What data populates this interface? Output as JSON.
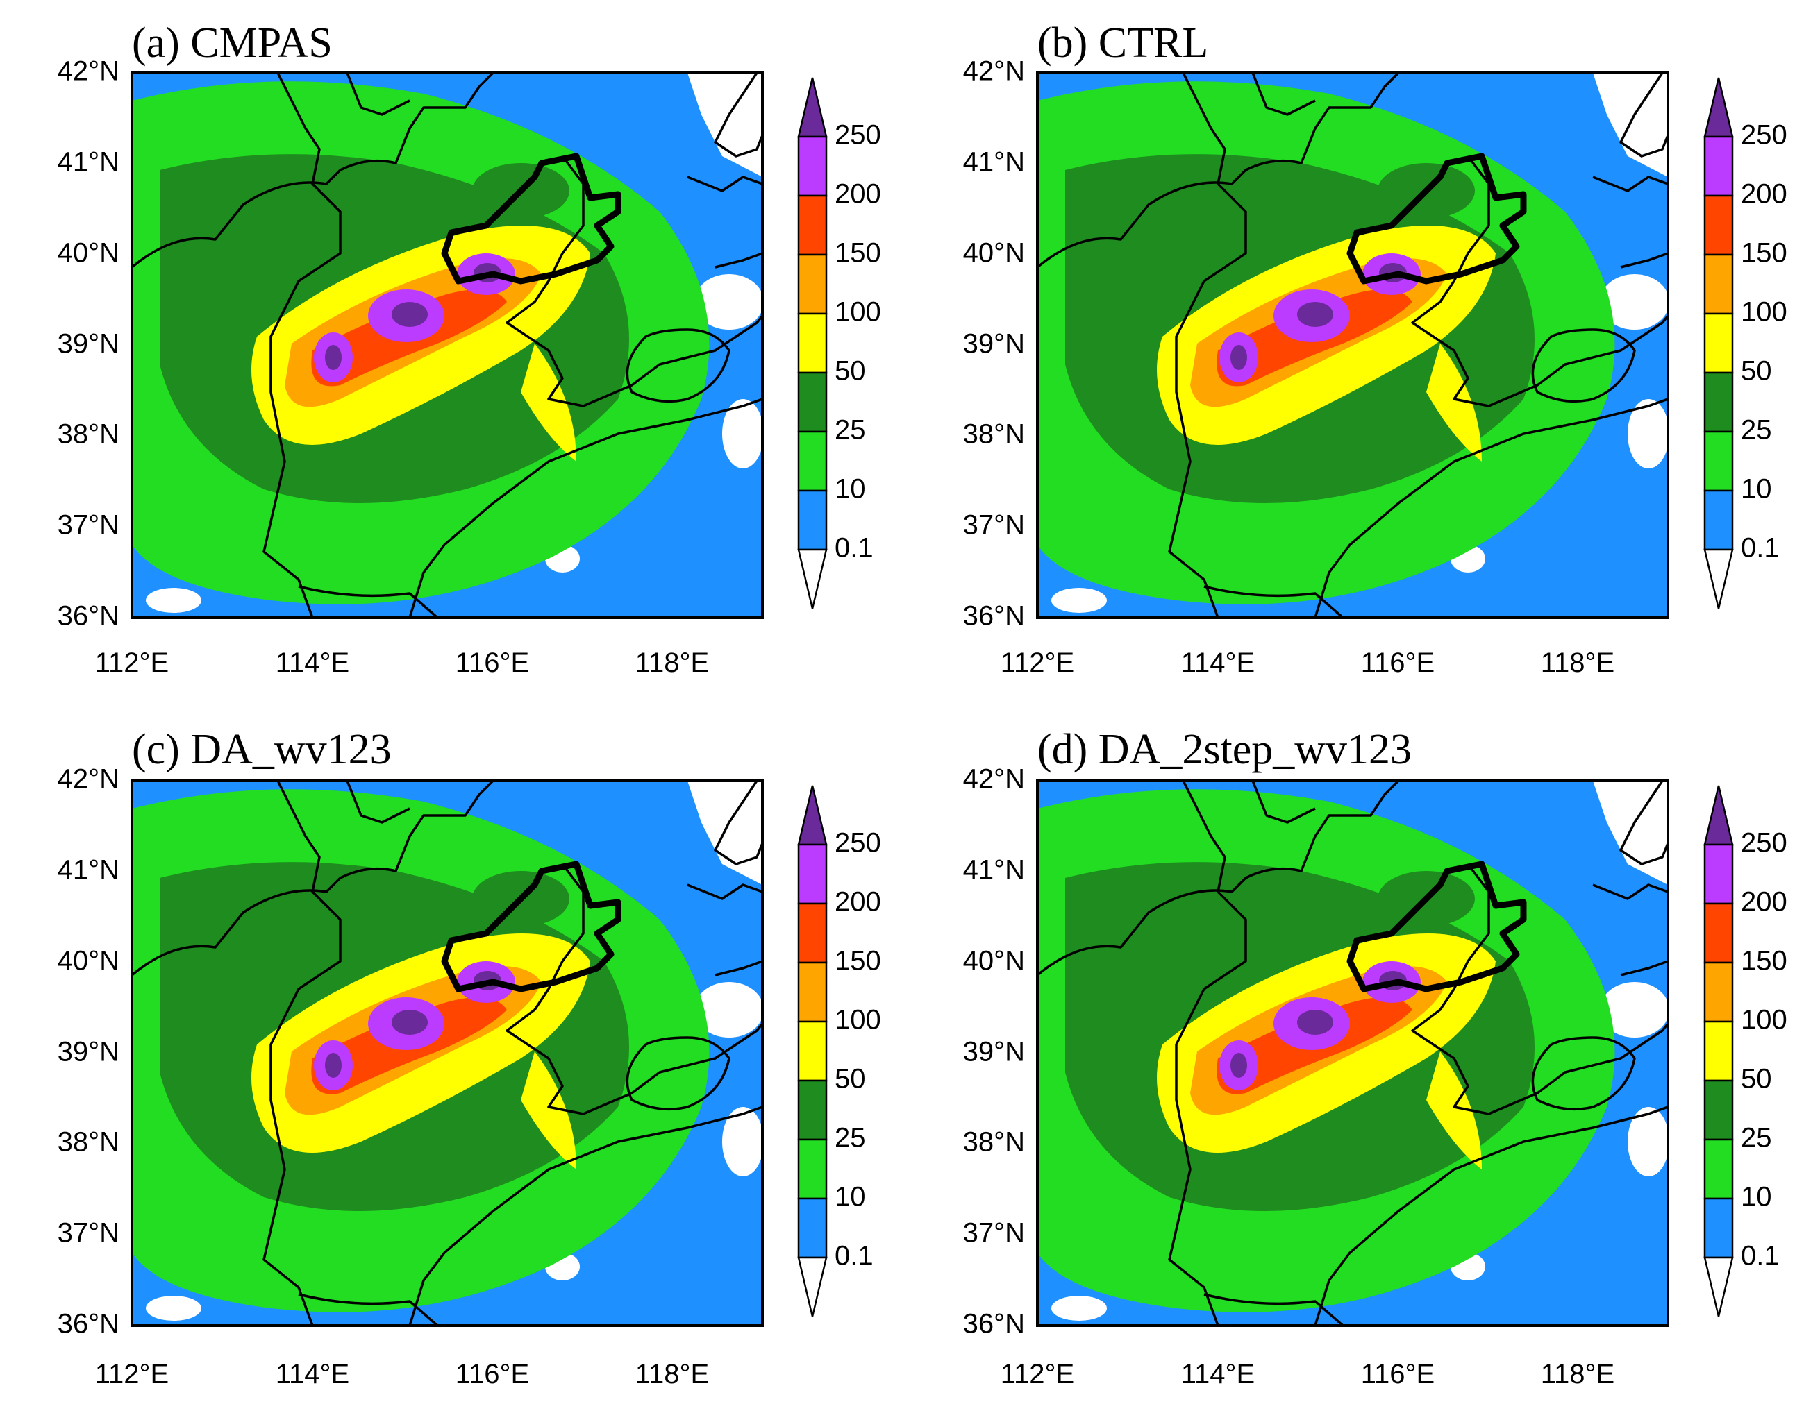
{
  "figure": {
    "panels": [
      {
        "id": "a",
        "title": "(a) CMPAS"
      },
      {
        "id": "b",
        "title": "(b) CTRL"
      },
      {
        "id": "c",
        "title": "(c) DA_wv123"
      },
      {
        "id": "d",
        "title": "(d) DA_2step_wv123"
      }
    ],
    "lat_labels": [
      "42°N",
      "41°N",
      "40°N",
      "39°N",
      "38°N",
      "37°N",
      "36°N"
    ],
    "lon_labels": [
      "112°E",
      "114°E",
      "116°E",
      "118°E"
    ],
    "colorbar": {
      "levels": [
        "0.1",
        "10",
        "25",
        "50",
        "100",
        "150",
        "200",
        "250"
      ],
      "colors": [
        "#ffffff",
        "#1e90ff",
        "#22dd22",
        "#1e8c1e",
        "#ffff00",
        "#ffa500",
        "#ff4500",
        "#bb3bff",
        "#6a2a9a"
      ]
    }
  }
}
